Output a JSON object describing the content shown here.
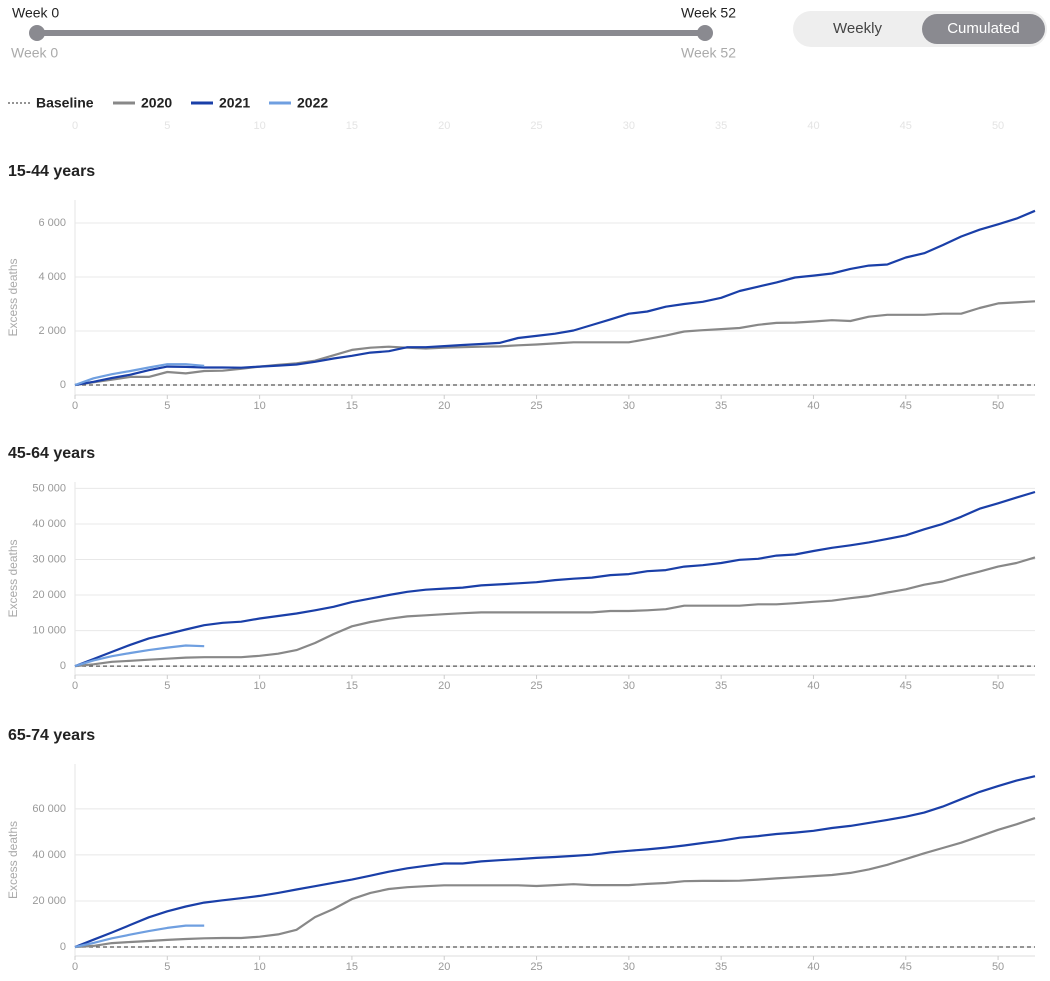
{
  "controls": {
    "slider": {
      "start_label": "Week 0",
      "end_label": "Week 52"
    },
    "toggle": [
      "Weekly",
      "Cumulated"
    ],
    "active": "Cumulated"
  },
  "chart_data": [
    {
      "type": "line",
      "title": "15-44 years",
      "y_label": "Excess deaths",
      "x": [
        0,
        1,
        2,
        3,
        4,
        5,
        6,
        7,
        8,
        9,
        10,
        11,
        12,
        13,
        14,
        15,
        16,
        17,
        18,
        19,
        20,
        21,
        22,
        23,
        24,
        25,
        26,
        27,
        28,
        29,
        30,
        31,
        32,
        33,
        34,
        35,
        36,
        37,
        38,
        39,
        40,
        41,
        42,
        43,
        44,
        45,
        46,
        47,
        48,
        49,
        50,
        51,
        52
      ],
      "xlim": [
        0,
        52
      ],
      "xticks": [
        0,
        5,
        10,
        15,
        20,
        25,
        30,
        35,
        40,
        45,
        50
      ],
      "ylim": [
        -370,
        6850
      ],
      "yticks": [
        0,
        {
          "value": 2000,
          "label": "2 000"
        },
        {
          "value": 4000,
          "label": "4 000"
        },
        {
          "value": 6000,
          "label": "6 000"
        }
      ],
      "grid": true,
      "series": [
        {
          "name": "Baseline",
          "color": "#555555",
          "dashed": true,
          "values": [
            0,
            0,
            0,
            0,
            0,
            0,
            0,
            0,
            0,
            0,
            0,
            0,
            0,
            0,
            0,
            0,
            0,
            0,
            0,
            0,
            0,
            0,
            0,
            0,
            0,
            0,
            0,
            0,
            0,
            0,
            0,
            0,
            0,
            0,
            0,
            0,
            0,
            0,
            0,
            0,
            0,
            0,
            0,
            0,
            0,
            0,
            0,
            0,
            0,
            0,
            0,
            0,
            0
          ]
        },
        {
          "name": "2020",
          "color": "#888888",
          "values": [
            0,
            100,
            200,
            300,
            300,
            480,
            430,
            520,
            530,
            600,
            680,
            750,
            800,
            900,
            1100,
            1300,
            1380,
            1420,
            1380,
            1350,
            1380,
            1400,
            1420,
            1430,
            1470,
            1500,
            1540,
            1580,
            1580,
            1580,
            1580,
            1700,
            1830,
            1980,
            2030,
            2070,
            2110,
            2230,
            2300,
            2310,
            2350,
            2400,
            2370,
            2530,
            2600,
            2600,
            2600,
            2640,
            2640,
            2850,
            3020,
            3060,
            3100
          ]
        },
        {
          "name": "2021",
          "color": "#1a3fa8",
          "values": [
            0,
            120,
            260,
            380,
            550,
            680,
            670,
            650,
            650,
            640,
            680,
            720,
            760,
            860,
            980,
            1080,
            1200,
            1250,
            1400,
            1400,
            1440,
            1480,
            1520,
            1560,
            1740,
            1820,
            1900,
            2020,
            2220,
            2430,
            2640,
            2720,
            2900,
            3000,
            3080,
            3230,
            3480,
            3640,
            3800,
            3980,
            4050,
            4130,
            4300,
            4420,
            4460,
            4720,
            4880,
            5180,
            5500,
            5750,
            5950,
            6160,
            6450
          ]
        },
        {
          "name": "2022",
          "color": "#6f9fe0",
          "values": [
            0,
            250,
            400,
            520,
            650,
            770,
            770,
            710,
            null,
            null,
            null,
            null,
            null,
            null,
            null,
            null,
            null,
            null,
            null,
            null,
            null,
            null,
            null,
            null,
            null,
            null,
            null,
            null,
            null,
            null,
            null,
            null,
            null,
            null,
            null,
            null,
            null,
            null,
            null,
            null,
            null,
            null,
            null,
            null,
            null,
            null,
            null,
            null,
            null,
            null,
            null,
            null,
            null
          ]
        }
      ]
    },
    {
      "type": "line",
      "title": "45-64 years",
      "y_label": "Excess deaths",
      "x": [
        0,
        1,
        2,
        3,
        4,
        5,
        6,
        7,
        8,
        9,
        10,
        11,
        12,
        13,
        14,
        15,
        16,
        17,
        18,
        19,
        20,
        21,
        22,
        23,
        24,
        25,
        26,
        27,
        28,
        29,
        30,
        31,
        32,
        33,
        34,
        35,
        36,
        37,
        38,
        39,
        40,
        41,
        42,
        43,
        44,
        45,
        46,
        47,
        48,
        49,
        50,
        51,
        52
      ],
      "xlim": [
        0,
        52
      ],
      "xticks": [
        0,
        5,
        10,
        15,
        20,
        25,
        30,
        35,
        40,
        45,
        50
      ],
      "ylim": [
        -2500,
        51800
      ],
      "yticks": [
        0,
        {
          "value": 10000,
          "label": "10 000"
        },
        {
          "value": 20000,
          "label": "20 000"
        },
        {
          "value": 30000,
          "label": "30 000"
        },
        {
          "value": 40000,
          "label": "40 000"
        },
        {
          "value": 50000,
          "label": "50 000"
        }
      ],
      "grid": true,
      "series": [
        {
          "name": "Baseline",
          "color": "#555555",
          "dashed": true,
          "values": [
            0,
            0,
            0,
            0,
            0,
            0,
            0,
            0,
            0,
            0,
            0,
            0,
            0,
            0,
            0,
            0,
            0,
            0,
            0,
            0,
            0,
            0,
            0,
            0,
            0,
            0,
            0,
            0,
            0,
            0,
            0,
            0,
            0,
            0,
            0,
            0,
            0,
            0,
            0,
            0,
            0,
            0,
            0,
            0,
            0,
            0,
            0,
            0,
            0,
            0,
            0,
            0,
            0
          ]
        },
        {
          "name": "2020",
          "color": "#888888",
          "values": [
            0,
            500,
            1200,
            1500,
            1800,
            2100,
            2400,
            2500,
            2500,
            2500,
            2900,
            3500,
            4500,
            6500,
            9000,
            11200,
            12400,
            13300,
            14000,
            14300,
            14600,
            14900,
            15100,
            15100,
            15100,
            15100,
            15100,
            15100,
            15100,
            15500,
            15500,
            15700,
            16000,
            17000,
            17000,
            17000,
            17000,
            17400,
            17400,
            17700,
            18100,
            18400,
            19100,
            19700,
            20700,
            21600,
            22900,
            23800,
            25300,
            26600,
            28000,
            29000,
            30600
          ]
        },
        {
          "name": "2021",
          "color": "#1a3fa8",
          "values": [
            0,
            2000,
            4000,
            6000,
            7800,
            9000,
            10300,
            11500,
            12200,
            12500,
            13400,
            14100,
            14800,
            15700,
            16700,
            18000,
            19000,
            20000,
            20900,
            21500,
            21800,
            22100,
            22700,
            23000,
            23300,
            23600,
            24200,
            24600,
            24900,
            25600,
            25900,
            26700,
            27000,
            28000,
            28400,
            29000,
            29900,
            30200,
            31100,
            31400,
            32400,
            33300,
            34000,
            34800,
            35800,
            36800,
            38500,
            40000,
            42000,
            44300,
            45800,
            47400,
            49000
          ]
        },
        {
          "name": "2022",
          "color": "#6f9fe0",
          "values": [
            0,
            1600,
            2800,
            3700,
            4500,
            5200,
            5800,
            5600,
            null,
            null,
            null,
            null,
            null,
            null,
            null,
            null,
            null,
            null,
            null,
            null,
            null,
            null,
            null,
            null,
            null,
            null,
            null,
            null,
            null,
            null,
            null,
            null,
            null,
            null,
            null,
            null,
            null,
            null,
            null,
            null,
            null,
            null,
            null,
            null,
            null,
            null,
            null,
            null,
            null,
            null,
            null,
            null,
            null
          ]
        }
      ]
    },
    {
      "type": "line",
      "title": "65-74 years",
      "y_label": "Excess deaths",
      "x": [
        0,
        1,
        2,
        3,
        4,
        5,
        6,
        7,
        8,
        9,
        10,
        11,
        12,
        13,
        14,
        15,
        16,
        17,
        18,
        19,
        20,
        21,
        22,
        23,
        24,
        25,
        26,
        27,
        28,
        29,
        30,
        31,
        32,
        33,
        34,
        35,
        36,
        37,
        38,
        39,
        40,
        41,
        42,
        43,
        44,
        45,
        46,
        47,
        48,
        49,
        50,
        51,
        52
      ],
      "xlim": [
        0,
        52
      ],
      "xticks": [
        0,
        5,
        10,
        15,
        20,
        25,
        30,
        35,
        40,
        45,
        50
      ],
      "ylim": [
        -3900,
        79500
      ],
      "yticks": [
        0,
        {
          "value": 20000,
          "label": "20 000"
        },
        {
          "value": 40000,
          "label": "40 000"
        },
        {
          "value": 60000,
          "label": "60 000"
        }
      ],
      "grid": true,
      "series": [
        {
          "name": "Baseline",
          "color": "#555555",
          "dashed": true,
          "values": [
            0,
            0,
            0,
            0,
            0,
            0,
            0,
            0,
            0,
            0,
            0,
            0,
            0,
            0,
            0,
            0,
            0,
            0,
            0,
            0,
            0,
            0,
            0,
            0,
            0,
            0,
            0,
            0,
            0,
            0,
            0,
            0,
            0,
            0,
            0,
            0,
            0,
            0,
            0,
            0,
            0,
            0,
            0,
            0,
            0,
            0,
            0,
            0,
            0,
            0,
            0,
            0,
            0
          ]
        },
        {
          "name": "2020",
          "color": "#888888",
          "values": [
            0,
            500,
            1700,
            2200,
            2600,
            3100,
            3500,
            3800,
            3900,
            3900,
            4500,
            5500,
            7500,
            13000,
            16500,
            20800,
            23500,
            25200,
            26000,
            26400,
            26800,
            26800,
            26800,
            26800,
            26800,
            26500,
            26900,
            27300,
            26900,
            26900,
            26900,
            27400,
            27800,
            28600,
            28700,
            28700,
            28800,
            29300,
            29800,
            30300,
            30800,
            31300,
            32200,
            33700,
            35700,
            38200,
            40700,
            43000,
            45300,
            48100,
            50900,
            53300,
            56000
          ]
        },
        {
          "name": "2021",
          "color": "#1a3fa8",
          "values": [
            0,
            3200,
            6300,
            9600,
            12900,
            15500,
            17600,
            19300,
            20300,
            21200,
            22200,
            23500,
            25000,
            26400,
            27900,
            29300,
            31000,
            32700,
            34200,
            35300,
            36300,
            36300,
            37200,
            37700,
            38200,
            38700,
            39100,
            39600,
            40100,
            41100,
            41800,
            42400,
            43200,
            44100,
            45200,
            46200,
            47500,
            48200,
            49100,
            49700,
            50500,
            51700,
            52600,
            53900,
            55200,
            56600,
            58400,
            61000,
            64200,
            67400,
            69900,
            72300,
            74200
          ]
        },
        {
          "name": "2022",
          "color": "#6f9fe0",
          "values": [
            0,
            1800,
            3800,
            5400,
            6900,
            8300,
            9300,
            9300,
            null,
            null,
            null,
            null,
            null,
            null,
            null,
            null,
            null,
            null,
            null,
            null,
            null,
            null,
            null,
            null,
            null,
            null,
            null,
            null,
            null,
            null,
            null,
            null,
            null,
            null,
            null,
            null,
            null,
            null,
            null,
            null,
            null,
            null,
            null,
            null,
            null,
            null,
            null,
            null,
            null,
            null,
            null,
            null,
            null
          ]
        }
      ]
    }
  ]
}
